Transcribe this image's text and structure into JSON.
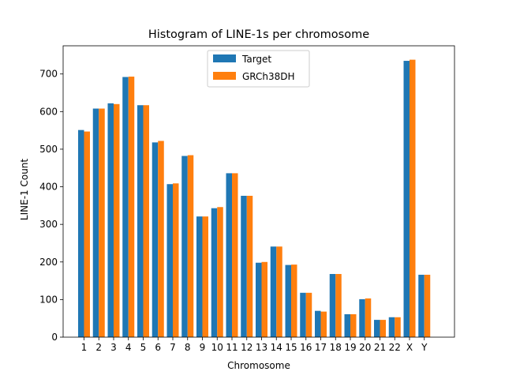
{
  "chart_data": {
    "type": "bar",
    "title": "Histogram of LINE-1s per chromosome",
    "xlabel": "Chromosome",
    "ylabel": "LINE-1 Count",
    "categories": [
      "1",
      "2",
      "3",
      "4",
      "5",
      "6",
      "7",
      "8",
      "9",
      "10",
      "11",
      "12",
      "13",
      "14",
      "15",
      "16",
      "17",
      "18",
      "19",
      "20",
      "21",
      "22",
      "X",
      "Y"
    ],
    "series": [
      {
        "name": "Target",
        "color": "#1f77b4",
        "values": [
          551,
          608,
          622,
          692,
          617,
          518,
          407,
          482,
          321,
          343,
          436,
          376,
          198,
          241,
          192,
          118,
          70,
          168,
          61,
          101,
          46,
          53,
          735,
          166
        ]
      },
      {
        "name": "GRCh38DH",
        "color": "#ff7f0e",
        "values": [
          547,
          608,
          620,
          693,
          617,
          522,
          409,
          484,
          321,
          346,
          436,
          376,
          200,
          241,
          193,
          118,
          68,
          168,
          61,
          103,
          46,
          53,
          738,
          166
        ]
      }
    ],
    "ylim": [
      0,
      775
    ],
    "yticks": [
      0,
      100,
      200,
      300,
      400,
      500,
      600,
      700
    ],
    "grid": false,
    "legend_position": "top-center"
  }
}
